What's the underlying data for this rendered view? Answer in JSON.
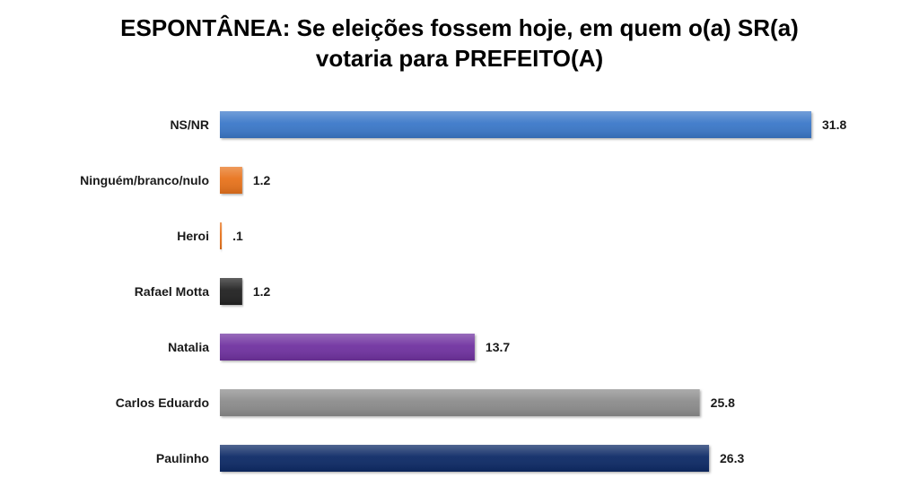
{
  "chart_data": {
    "type": "bar",
    "orientation": "horizontal",
    "title_line1": "ESPONTÂNEA: Se eleições fossem hoje, em quem o(a) SR(a)",
    "title_line2": "votaria para PREFEITO(A)",
    "categories": [
      "NS/NR",
      "Ninguém/branco/nulo",
      "Heroi",
      "Rafael Motta",
      "Natalia",
      "Carlos Eduardo",
      "Paulinho"
    ],
    "values": [
      31.8,
      1.2,
      0.1,
      1.2,
      13.7,
      25.8,
      26.3
    ],
    "value_labels": [
      "31.8",
      "1.2",
      ".1",
      "1.2",
      "13.7",
      "25.8",
      "26.3"
    ],
    "colors": [
      "#3a78c9",
      "#e8731a",
      "#e8731a",
      "#222222",
      "#7030a0",
      "#8c8c8c",
      "#0f2a66"
    ],
    "xlim": [
      0,
      31.8
    ],
    "grid": false,
    "legend": "none"
  }
}
